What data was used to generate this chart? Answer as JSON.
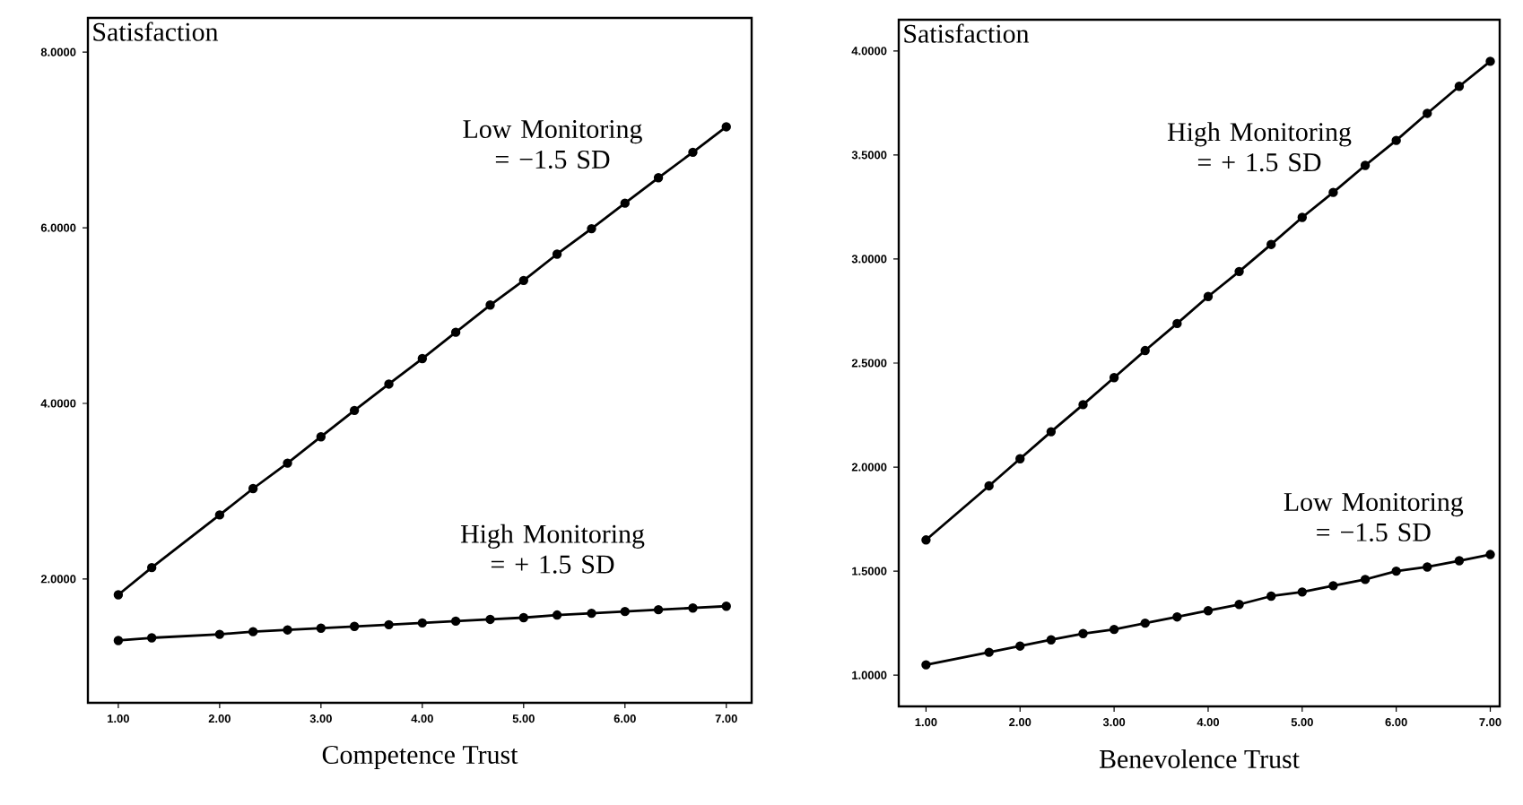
{
  "chart_data": [
    {
      "type": "line",
      "xlabel": "Competence Trust",
      "ylabel": "Satisfaction",
      "x": [
        1.0,
        1.33,
        2.0,
        2.33,
        2.67,
        3.0,
        3.33,
        3.67,
        4.0,
        4.33,
        4.67,
        5.0,
        5.33,
        5.67,
        6.0,
        6.33,
        6.67,
        7.0
      ],
      "series": [
        {
          "name": "Low Monitoring = −1.5 SD",
          "color": "#000000",
          "values": [
            1.82,
            2.13,
            2.73,
            3.03,
            3.32,
            3.62,
            3.92,
            4.22,
            4.51,
            4.81,
            5.12,
            5.4,
            5.7,
            5.99,
            6.28,
            6.57,
            6.86,
            7.15
          ]
        },
        {
          "name": "High Monitoring = + 1.5 SD",
          "color": "#000000",
          "values": [
            1.3,
            1.33,
            1.37,
            1.4,
            1.42,
            1.44,
            1.46,
            1.48,
            1.5,
            1.52,
            1.54,
            1.56,
            1.59,
            1.61,
            1.63,
            1.65,
            1.67,
            1.69
          ]
        }
      ],
      "xlim": [
        0.7,
        7.25
      ],
      "ylim": [
        0.59,
        8.39
      ],
      "xticks": [
        {
          "value": 1,
          "label": "1.00"
        },
        {
          "value": 2,
          "label": "2.00"
        },
        {
          "value": 3,
          "label": "3.00"
        },
        {
          "value": 4,
          "label": "4.00"
        },
        {
          "value": 5,
          "label": "5.00"
        },
        {
          "value": 6,
          "label": "6.00"
        },
        {
          "value": 7,
          "label": "7.00"
        }
      ],
      "yticks": [
        {
          "value": 2,
          "label": "2.0000"
        },
        {
          "value": 4,
          "label": "4.0000"
        },
        {
          "value": 6,
          "label": "6.0000"
        },
        {
          "value": 8,
          "label": "8.0000"
        }
      ],
      "grid": false,
      "legend": false,
      "marker": "circle",
      "line_style": "solid"
    },
    {
      "type": "line",
      "xlabel": "Benevolence Trust",
      "ylabel": "Satisfaction",
      "x": [
        1.0,
        1.67,
        2.0,
        2.33,
        2.67,
        3.0,
        3.33,
        3.67,
        4.0,
        4.33,
        4.67,
        5.0,
        5.33,
        5.67,
        6.0,
        6.33,
        6.67,
        7.0
      ],
      "series": [
        {
          "name": "High Monitoring = + 1.5 SD",
          "color": "#000000",
          "values": [
            1.65,
            1.91,
            2.04,
            2.17,
            2.3,
            2.43,
            2.56,
            2.69,
            2.82,
            2.94,
            3.07,
            3.2,
            3.32,
            3.45,
            3.57,
            3.7,
            3.83,
            3.95
          ]
        },
        {
          "name": "Low Monitoring = −1.5 SD",
          "color": "#000000",
          "values": [
            1.05,
            1.11,
            1.14,
            1.17,
            1.2,
            1.22,
            1.25,
            1.28,
            1.31,
            1.34,
            1.38,
            1.4,
            1.43,
            1.46,
            1.5,
            1.52,
            1.55,
            1.58
          ]
        }
      ],
      "xlim": [
        0.71,
        7.1
      ],
      "ylim": [
        0.85,
        4.15
      ],
      "xticks": [
        {
          "value": 1,
          "label": "1.00"
        },
        {
          "value": 2,
          "label": "2.00"
        },
        {
          "value": 3,
          "label": "3.00"
        },
        {
          "value": 4,
          "label": "4.00"
        },
        {
          "value": 5,
          "label": "5.00"
        },
        {
          "value": 6,
          "label": "6.00"
        },
        {
          "value": 7,
          "label": "7.00"
        }
      ],
      "yticks": [
        {
          "value": 1,
          "label": "1.0000"
        },
        {
          "value": 1.5,
          "label": "1.5000"
        },
        {
          "value": 2,
          "label": "2.0000"
        },
        {
          "value": 2.5,
          "label": "2.5000"
        },
        {
          "value": 3,
          "label": "3.0000"
        },
        {
          "value": 3.5,
          "label": "3.5000"
        },
        {
          "value": 4,
          "label": "4.0000"
        }
      ],
      "grid": false,
      "legend": false,
      "marker": "circle",
      "line_style": "solid"
    }
  ]
}
